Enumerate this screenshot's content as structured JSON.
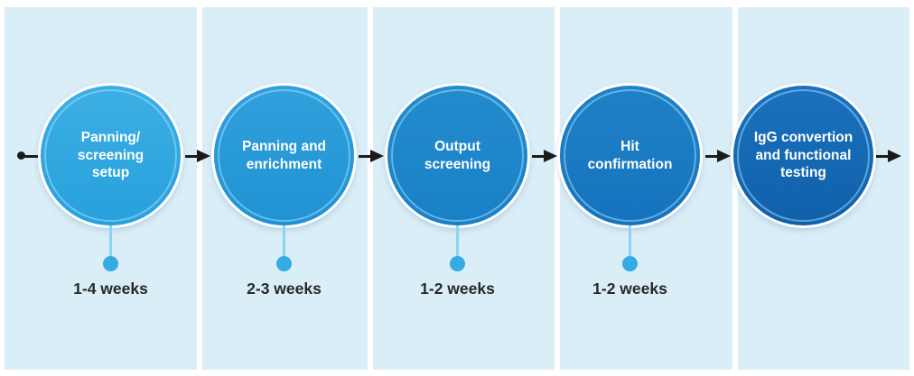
{
  "diagram": {
    "type": "process-timeline",
    "steps": [
      {
        "label": "Panning/ screening setup",
        "duration": "1-4 weeks",
        "circle_color": "#33A9E1"
      },
      {
        "label": "Panning and enrichment",
        "duration": "2-3 weeks",
        "circle_color": "#2B9CD8"
      },
      {
        "label": "Output screening",
        "duration": "1-2 weeks",
        "circle_color": "#1E88CB"
      },
      {
        "label": "Hit confirmation",
        "duration": "1-2 weeks",
        "circle_color": "#1A7CC3"
      },
      {
        "label": "IgG convertion and functional testing",
        "duration": null,
        "circle_color": "#1566B0"
      }
    ],
    "palette": {
      "page_background": "#FFFFFF",
      "panel_background": "#DAEEF8",
      "connector_black": "#1B1B1B",
      "marker_dot_blue": "#35ABE3",
      "marker_line_blue": "#8ED3F3",
      "circle_ring_white": "#FFFFFF",
      "circle_text": "#FFFFFF",
      "duration_text": "#282828"
    }
  }
}
